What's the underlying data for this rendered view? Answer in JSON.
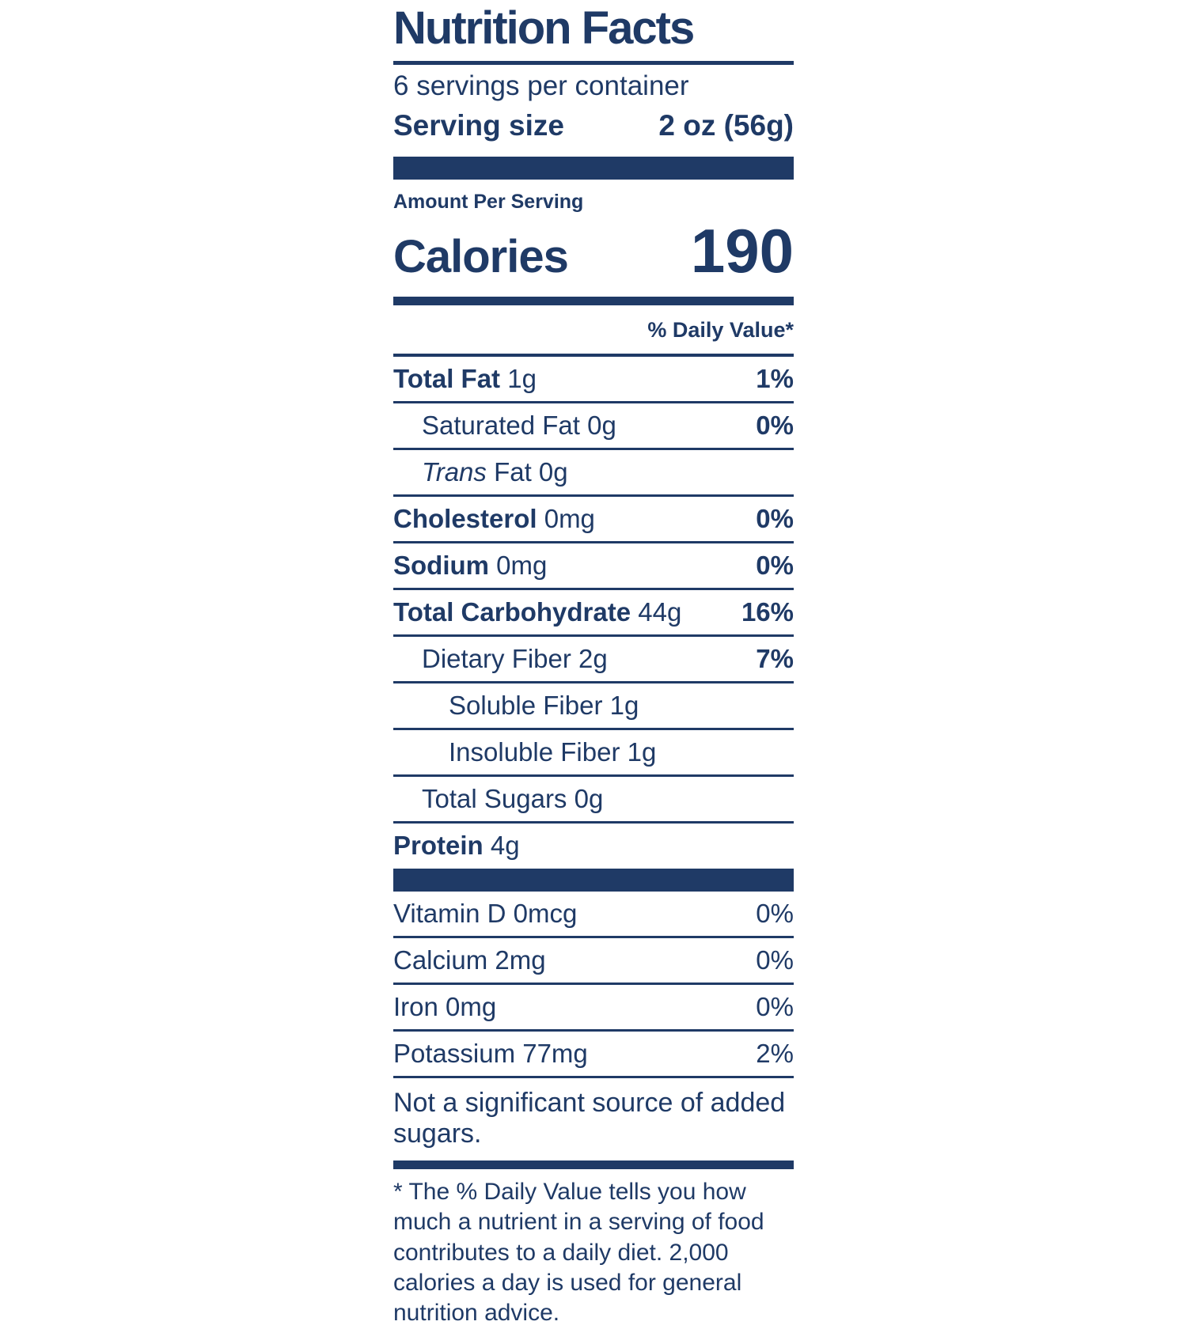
{
  "colors": {
    "navy": "#1f3a66"
  },
  "label": {
    "title": "Nutrition Facts",
    "servings_per_container": "6 servings per container",
    "serving_size_label": "Serving size",
    "serving_size_value": "2 oz (56g)",
    "amount_per_serving": "Amount Per Serving",
    "calories_label": "Calories",
    "calories_value": "190",
    "daily_value_header": "% Daily Value*",
    "nutrients": [
      {
        "b": "Total Fat",
        "i": "",
        "r": " 1g",
        "dv": "1%"
      },
      {
        "b": "",
        "i": "",
        "r": "Saturated Fat 0g",
        "dv": "0%"
      },
      {
        "b": "",
        "i": "Trans",
        "r": " Fat 0g",
        "dv": ""
      },
      {
        "b": "Cholesterol",
        "i": "",
        "r": " 0mg",
        "dv": "0%"
      },
      {
        "b": "Sodium",
        "i": "",
        "r": " 0mg",
        "dv": "0%"
      },
      {
        "b": "Total Carbohydrate",
        "i": "",
        "r": " 44g",
        "dv": "16%"
      },
      {
        "b": "",
        "i": "",
        "r": "Dietary Fiber 2g",
        "dv": "7%"
      },
      {
        "b": "",
        "i": "",
        "r": "Soluble Fiber 1g",
        "dv": ""
      },
      {
        "b": "",
        "i": "",
        "r": "Insoluble Fiber 1g",
        "dv": ""
      },
      {
        "b": "",
        "i": "",
        "r": "Total Sugars 0g",
        "dv": ""
      },
      {
        "b": "Protein",
        "i": "",
        "r": " 4g",
        "dv": ""
      }
    ],
    "vitamins": [
      {
        "name": "Vitamin D 0mcg",
        "dv": "0%"
      },
      {
        "name": "Calcium 2mg",
        "dv": "0%"
      },
      {
        "name": "Iron 0mg",
        "dv": "0%"
      },
      {
        "name": "Potassium 77mg",
        "dv": "2%"
      }
    ],
    "added_sugars_note": "Not a significant source of added sugars.",
    "footnote": "* The % Daily Value tells you how much a nutrient in a serving of food contributes to a daily diet. 2,000 calories a day is used for general nutrition advice."
  }
}
